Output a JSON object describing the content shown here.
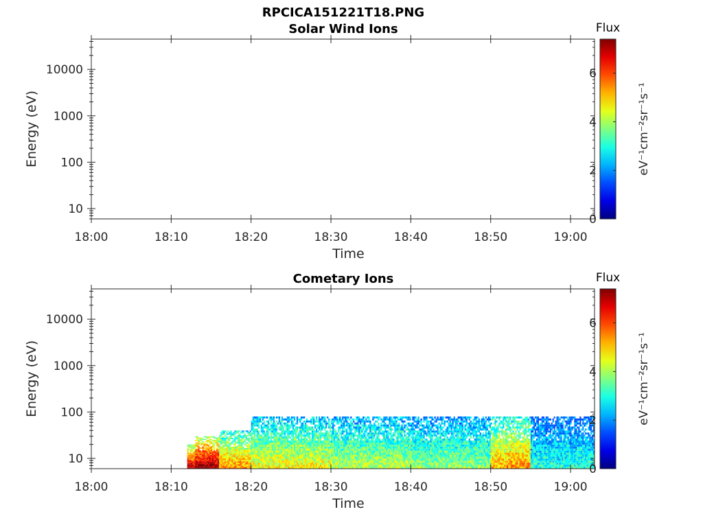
{
  "figure_title": "RPCICA151221T18.PNG",
  "chart_data": [
    {
      "type": "heatmap",
      "title": "Solar Wind Ions",
      "xlabel": "Time",
      "ylabel": "Energy (eV)",
      "y_scale": "log",
      "ylim": [
        6,
        45000
      ],
      "xlim": [
        "18:00",
        "19:03"
      ],
      "x_ticks": [
        "18:00",
        "18:10",
        "18:20",
        "18:30",
        "18:40",
        "18:50",
        "19:00"
      ],
      "y_ticks": [
        "10",
        "100",
        "1000",
        "10000"
      ],
      "colorbar": {
        "title": "Flux",
        "label": "eV⁻¹cm⁻²sr⁻¹s⁻¹",
        "range": [
          0,
          7.4
        ],
        "ticks": [
          "0",
          "2",
          "4",
          "6"
        ],
        "colormap": "jet"
      },
      "data": []
    },
    {
      "type": "heatmap",
      "title": "Cometary Ions",
      "xlabel": "Time",
      "ylabel": "Energy (eV)",
      "y_scale": "log",
      "ylim": [
        6,
        45000
      ],
      "xlim": [
        "18:00",
        "19:03"
      ],
      "x_ticks": [
        "18:00",
        "18:10",
        "18:20",
        "18:30",
        "18:40",
        "18:50",
        "19:00"
      ],
      "y_ticks": [
        "10",
        "100",
        "1000",
        "10000"
      ],
      "colorbar": {
        "title": "Flux",
        "label": "eV⁻¹cm⁻²sr⁻¹s⁻¹",
        "range": [
          0,
          7.4
        ],
        "ticks": [
          "0",
          "2",
          "4",
          "6"
        ],
        "colormap": "jet"
      },
      "data_extent": {
        "time_start": "18:12",
        "time_end": "19:03",
        "energy_max": 80
      },
      "data": [
        {
          "time_start": "18:12",
          "time_end": "18:13",
          "energy_min": 6,
          "energy_max": 20,
          "flux": 6.5
        },
        {
          "time_start": "18:13",
          "time_end": "18:16",
          "energy_min": 6,
          "energy_max": 30,
          "flux": 6.8
        },
        {
          "time_start": "18:16",
          "time_end": "18:20",
          "energy_min": 6,
          "energy_max": 40,
          "flux": 5.0
        },
        {
          "time_start": "18:20",
          "time_end": "18:30",
          "energy_min": 6,
          "energy_max": 80,
          "flux": 4.2
        },
        {
          "time_start": "18:30",
          "time_end": "18:40",
          "energy_min": 6,
          "energy_max": 80,
          "flux": 3.8
        },
        {
          "time_start": "18:40",
          "time_end": "18:50",
          "energy_min": 6,
          "energy_max": 80,
          "flux": 3.5
        },
        {
          "time_start": "18:50",
          "time_end": "18:52",
          "energy_min": 6,
          "energy_max": 80,
          "flux": 4.8
        },
        {
          "time_start": "18:52",
          "time_end": "18:55",
          "energy_min": 6,
          "energy_max": 80,
          "flux": 5.0
        },
        {
          "time_start": "18:55",
          "time_end": "19:03",
          "energy_min": 6,
          "energy_max": 80,
          "flux": 2.8
        }
      ]
    }
  ]
}
